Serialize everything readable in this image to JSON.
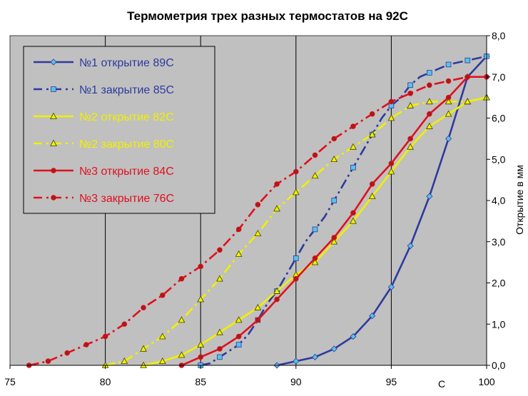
{
  "chart_data": {
    "type": "line",
    "title": "Термометрия трех разных термостатов на 92С",
    "xlabel": "С",
    "ylabel": "Открытие в мм",
    "xlim": [
      75,
      100
    ],
    "ylim": [
      0,
      8
    ],
    "x_ticks": [
      75,
      80,
      85,
      90,
      95,
      100
    ],
    "x_tick_labels": [
      "75",
      "80",
      "85",
      "90",
      "95",
      "100"
    ],
    "y_ticks": [
      0,
      1,
      2,
      3,
      4,
      5,
      6,
      7,
      8
    ],
    "y_tick_labels": [
      "0,0",
      "1,0",
      "2,0",
      "3,0",
      "4,0",
      "5,0",
      "6,0",
      "7,0",
      "8,0"
    ],
    "grid": "vertical",
    "y_axis_side": "right",
    "legend_position": "top-left",
    "plot_background": "#c0c0c0",
    "series": [
      {
        "name": "№1 открытие 89С",
        "color": "#2e3a9e",
        "dash": "solid",
        "marker": "diamond",
        "marker_color": "#5bc0e8",
        "x": [
          89,
          90,
          91,
          92,
          93,
          94,
          95,
          96,
          97,
          98,
          99,
          100
        ],
        "y": [
          0.0,
          0.1,
          0.2,
          0.4,
          0.7,
          1.2,
          1.9,
          2.9,
          4.1,
          5.5,
          7.0,
          7.5
        ]
      },
      {
        "name": "№1 закрытие 85С",
        "color": "#2e3a9e",
        "dash": "dashdot",
        "marker": "square",
        "marker_color": "#5bc0e8",
        "x": [
          85,
          85.5,
          86,
          86.5,
          87,
          87.5,
          88,
          88.5,
          89,
          89.5,
          90,
          90.5,
          91,
          91.5,
          92,
          92.5,
          93,
          93.5,
          94,
          94.5,
          95,
          95.5,
          96,
          96.5,
          97,
          97.5,
          98,
          98.5,
          99,
          99.5,
          100
        ],
        "y": [
          0.0,
          0.05,
          0.2,
          0.35,
          0.5,
          0.75,
          1.1,
          1.5,
          1.8,
          2.2,
          2.6,
          3.0,
          3.3,
          3.6,
          4.0,
          4.4,
          4.8,
          5.2,
          5.6,
          6.0,
          6.3,
          6.5,
          6.8,
          7.0,
          7.1,
          7.2,
          7.3,
          7.35,
          7.4,
          7.45,
          7.5
        ]
      },
      {
        "name": "№2 открытие 82С",
        "color": "#f0f000",
        "dash": "solid",
        "marker": "triangle",
        "marker_color": "#f0f000",
        "x": [
          82,
          83,
          84,
          85,
          86,
          87,
          88,
          89,
          90,
          91,
          92,
          93,
          94,
          95,
          96,
          97,
          98,
          99,
          100
        ],
        "y": [
          0.0,
          0.1,
          0.25,
          0.5,
          0.8,
          1.1,
          1.4,
          1.8,
          2.2,
          2.5,
          3.0,
          3.5,
          4.1,
          4.7,
          5.3,
          5.8,
          6.1,
          6.4,
          6.5
        ]
      },
      {
        "name": "№2 закрытие 80С",
        "color": "#f0f000",
        "dash": "dashdot",
        "marker": "triangle",
        "marker_color": "#f0f000",
        "x": [
          80,
          81,
          82,
          83,
          84,
          85,
          86,
          87,
          88,
          89,
          90,
          91,
          92,
          93,
          94,
          95,
          96,
          97,
          98,
          99,
          100
        ],
        "y": [
          0.0,
          0.1,
          0.4,
          0.7,
          1.1,
          1.6,
          2.1,
          2.7,
          3.2,
          3.8,
          4.2,
          4.6,
          5.0,
          5.3,
          5.6,
          6.0,
          6.3,
          6.4,
          6.4,
          6.4,
          6.5
        ]
      },
      {
        "name": "№3 открытие 84С",
        "color": "#e0101e",
        "dash": "solid",
        "marker": "circle",
        "marker_color": "#b01818",
        "x": [
          84,
          85,
          86,
          87,
          88,
          89,
          90,
          91,
          92,
          93,
          94,
          95,
          96,
          97,
          98,
          99,
          100
        ],
        "y": [
          0.0,
          0.2,
          0.4,
          0.7,
          1.1,
          1.6,
          2.1,
          2.6,
          3.1,
          3.7,
          4.4,
          4.9,
          5.5,
          6.1,
          6.5,
          7.0,
          7.0
        ]
      },
      {
        "name": "№3 закрытие 76С",
        "color": "#e0101e",
        "dash": "dashdot",
        "marker": "circle",
        "marker_color": "#b01818",
        "x": [
          76,
          77,
          78,
          79,
          80,
          81,
          82,
          83,
          84,
          85,
          86,
          87,
          88,
          89,
          90,
          91,
          92,
          93,
          94,
          95,
          96,
          97,
          98,
          99,
          100
        ],
        "y": [
          0.0,
          0.1,
          0.3,
          0.5,
          0.7,
          1.0,
          1.4,
          1.7,
          2.1,
          2.4,
          2.8,
          3.3,
          3.9,
          4.4,
          4.7,
          5.1,
          5.5,
          5.8,
          6.1,
          6.4,
          6.6,
          6.8,
          6.9,
          7.0,
          7.0
        ]
      }
    ]
  }
}
